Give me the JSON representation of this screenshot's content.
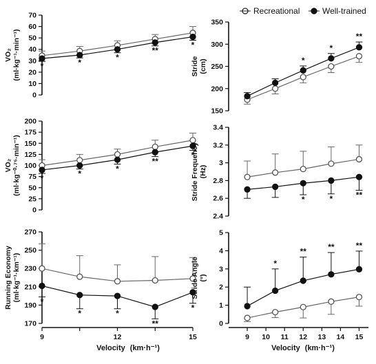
{
  "legend": {
    "recreational": "Recreational",
    "well_trained": "Well-trained"
  },
  "x_axis_label": "Velocity",
  "x_axis_unit": "(km·h⁻¹)",
  "chart_data": [
    {
      "type": "line",
      "panel": "left-top",
      "ylabel_main": "VO₂",
      "ylabel_unit": "(ml·kg⁻¹·min⁻¹)",
      "ylim": [
        0,
        70
      ],
      "yticks": [
        0,
        10,
        20,
        30,
        40,
        50,
        60,
        70
      ],
      "xlim": [
        9,
        15
      ],
      "xticks": [
        9,
        10.5,
        12,
        13.5,
        15
      ],
      "x": [
        9,
        10.5,
        12,
        13.5,
        15
      ],
      "series": [
        {
          "name": "Recreational",
          "values": [
            34.5,
            38.5,
            43.5,
            49,
            54.5
          ],
          "sd": [
            4,
            4,
            4,
            4,
            5.5
          ],
          "sd_side": "up"
        },
        {
          "name": "Well-trained",
          "values": [
            32,
            35,
            40,
            46,
            51
          ],
          "sd": [
            2.5,
            2.5,
            3,
            3,
            3
          ],
          "sd_side": "down"
        }
      ],
      "significance": [
        "*",
        "*",
        "*",
        "**",
        "*"
      ]
    },
    {
      "type": "line",
      "panel": "left-middle",
      "ylabel_main": "VO₂",
      "ylabel_unit": "(ml·kg⁻⁰·⁷⁵·min⁻¹)",
      "ylim": [
        0,
        200
      ],
      "yticks": [
        0,
        25,
        50,
        75,
        100,
        125,
        150,
        175,
        200
      ],
      "xlim": [
        9,
        15
      ],
      "xticks": [
        9,
        10.5,
        12,
        13.5,
        15
      ],
      "x": [
        9,
        10.5,
        12,
        13.5,
        15
      ],
      "series": [
        {
          "name": "Recreational",
          "values": [
            100,
            112,
            125,
            142,
            157
          ],
          "sd": [
            13,
            13,
            12,
            15,
            16
          ],
          "sd_side": "up"
        },
        {
          "name": "Well-trained",
          "values": [
            90,
            100,
            113,
            130,
            144
          ],
          "sd": [
            8,
            8,
            10,
            10,
            10
          ],
          "sd_side": "down"
        }
      ],
      "significance": [
        "*",
        "*",
        "*",
        "**",
        "*"
      ]
    },
    {
      "type": "line",
      "panel": "left-bottom",
      "ylabel_main": "Running Economy",
      "ylabel_unit": "(ml·kg⁻¹·km⁻¹)",
      "ylim": [
        170,
        270
      ],
      "yticks": [
        170,
        190,
        210,
        230,
        250,
        270
      ],
      "xlim": [
        9,
        15
      ],
      "xticks": [
        9,
        10.5,
        12,
        13.5,
        15
      ],
      "x": [
        9,
        10.5,
        12,
        13.5,
        15
      ],
      "series": [
        {
          "name": "Recreational",
          "values": [
            230,
            221,
            216,
            217,
            219
          ],
          "sd": [
            27,
            23,
            18,
            26,
            23
          ],
          "sd_side": "up"
        },
        {
          "name": "Well-trained",
          "values": [
            211,
            201,
            200,
            188,
            204
          ],
          "sd": [
            12,
            15,
            14,
            13,
            12
          ],
          "sd_side": "down"
        }
      ],
      "significance": [
        "*",
        "*",
        "*",
        "**",
        "*"
      ]
    },
    {
      "type": "line",
      "panel": "right-top",
      "ylabel_main": "Stride",
      "ylabel_unit": "(cm)",
      "ylim": [
        150,
        350
      ],
      "yticks": [
        150,
        200,
        250,
        300,
        350
      ],
      "xlim": [
        8,
        15.5
      ],
      "xticks": [
        9,
        10,
        11,
        12,
        13,
        14,
        15
      ],
      "x": [
        9,
        10.5,
        12,
        13.5,
        15
      ],
      "series": [
        {
          "name": "Recreational",
          "values": [
            175,
            200,
            226,
            250,
            273
          ],
          "sd": [
            10,
            12,
            13,
            14,
            14
          ],
          "sd_side": "down"
        },
        {
          "name": "Well-trained",
          "values": [
            183,
            213,
            241,
            268,
            293
          ],
          "sd": [
            8,
            9,
            10,
            11,
            12
          ],
          "sd_side": "up"
        }
      ],
      "significance": [
        "",
        "",
        "*",
        "*",
        "**"
      ]
    },
    {
      "type": "line",
      "panel": "right-middle",
      "ylabel_main": "Stride Frequency",
      "ylabel_unit": "(Hz)",
      "ylim": [
        2.4,
        3.4
      ],
      "yticks": [
        2.4,
        2.6,
        2.8,
        3.0,
        3.2,
        3.4
      ],
      "xlim": [
        8,
        15.5
      ],
      "xticks": [
        9,
        10,
        11,
        12,
        13,
        14,
        15
      ],
      "x": [
        9,
        10.5,
        12,
        13.5,
        15
      ],
      "series": [
        {
          "name": "Recreational",
          "values": [
            2.84,
            2.89,
            2.93,
            2.99,
            3.04
          ],
          "sd": [
            0.18,
            0.21,
            0.2,
            0.19,
            0.16
          ],
          "sd_side": "up"
        },
        {
          "name": "Well-trained",
          "values": [
            2.7,
            2.73,
            2.77,
            2.8,
            2.84
          ],
          "sd": [
            0.1,
            0.12,
            0.13,
            0.15,
            0.15
          ],
          "sd_side": "down"
        }
      ],
      "significance": [
        "",
        "",
        "*",
        "*",
        "**"
      ]
    },
    {
      "type": "line",
      "panel": "right-bottom",
      "ylabel_main": "Stride Angle",
      "ylabel_unit": "(°)",
      "ylim": [
        0,
        5
      ],
      "yticks": [
        0,
        1,
        2,
        3,
        4,
        5
      ],
      "xlim": [
        8,
        15.5
      ],
      "xticks": [
        9,
        10,
        11,
        12,
        13,
        14,
        15
      ],
      "x": [
        9,
        10.5,
        12,
        13.5,
        15
      ],
      "series": [
        {
          "name": "Recreational",
          "values": [
            0.3,
            0.62,
            0.9,
            1.2,
            1.45
          ],
          "sd": [
            0.2,
            0.3,
            0.6,
            0.7,
            0.5
          ],
          "sd_side": "down"
        },
        {
          "name": "Well-trained",
          "values": [
            0.95,
            1.8,
            2.35,
            2.7,
            2.98
          ],
          "sd": [
            1.05,
            1.2,
            1.3,
            1.2,
            1.0
          ],
          "sd_side": "up"
        }
      ],
      "significance": [
        "",
        "*",
        "**",
        "**",
        "**"
      ]
    }
  ]
}
